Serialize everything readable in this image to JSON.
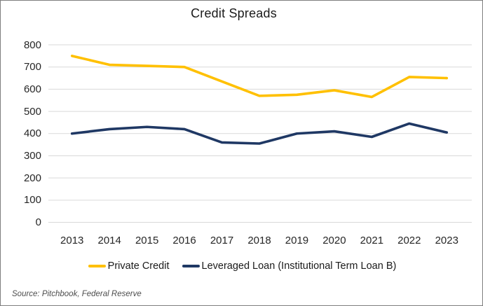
{
  "chart_data": {
    "type": "line",
    "title": "Credit Spreads",
    "categories": [
      "2013",
      "2014",
      "2015",
      "2016",
      "2017",
      "2018",
      "2019",
      "2020",
      "2021",
      "2022",
      "2023"
    ],
    "series": [
      {
        "name": "Private Credit",
        "color": "#FFC000",
        "values": [
          750,
          710,
          705,
          700,
          635,
          570,
          575,
          595,
          565,
          655,
          650
        ]
      },
      {
        "name": "Leveraged Loan (Institutional Term Loan B)",
        "color": "#1F3864",
        "values": [
          400,
          420,
          430,
          420,
          360,
          355,
          400,
          410,
          385,
          445,
          405
        ]
      }
    ],
    "y_axis": {
      "min": 0,
      "max": 800,
      "step": 100
    },
    "x_label": "",
    "y_label": "",
    "grid": true,
    "gridline_color": "#D9D9D9",
    "legend_position": "bottom",
    "source_note": "Source: Pitchbook, Federal Reserve"
  }
}
